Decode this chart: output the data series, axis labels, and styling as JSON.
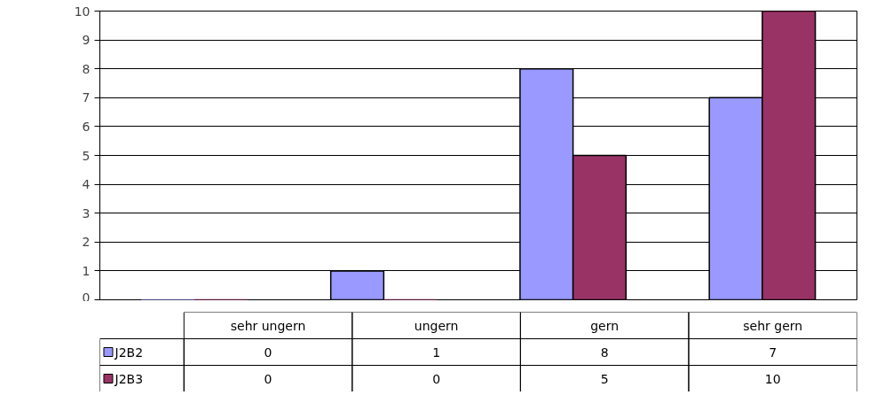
{
  "chart_data": {
    "type": "bar",
    "categories": [
      "sehr ungern",
      "ungern",
      "gern",
      "sehr gern"
    ],
    "series": [
      {
        "name": "J2B2",
        "color": "#9999ff",
        "values": [
          0,
          1,
          8,
          7
        ]
      },
      {
        "name": "J2B3",
        "color": "#993366",
        "values": [
          0,
          0,
          5,
          10
        ]
      }
    ],
    "ylim": [
      0,
      10
    ],
    "yticks": [
      0,
      1,
      2,
      3,
      4,
      5,
      6,
      7,
      8,
      9,
      10
    ],
    "grid": "y",
    "legend": "bottom",
    "data_labels": true
  }
}
